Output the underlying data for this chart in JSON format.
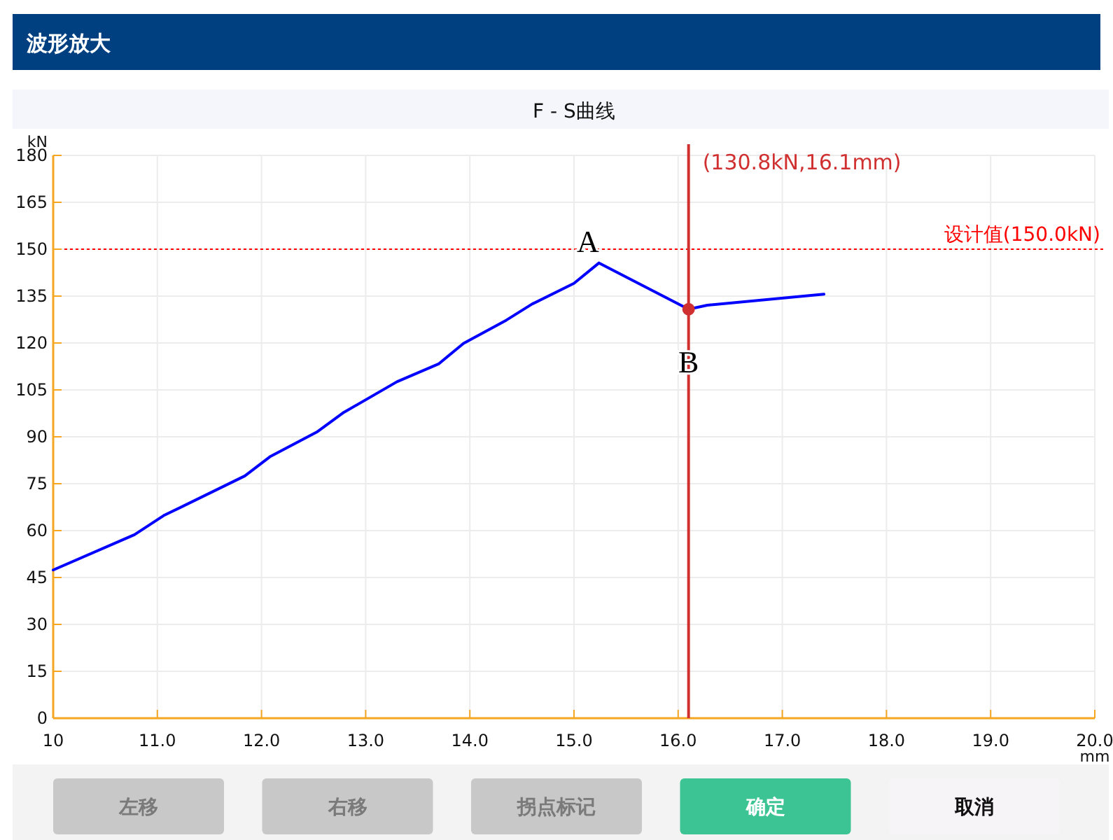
{
  "chart_data": {
    "type": "line",
    "title": "F - S曲线",
    "xlabel": "mm",
    "ylabel": "kN",
    "xlim": [
      10,
      20
    ],
    "xticks": [
      10,
      {
        "value": 11,
        "label": "11.0"
      },
      {
        "value": 12,
        "label": "12.0"
      },
      {
        "value": 13,
        "label": "13.0"
      },
      {
        "value": 14,
        "label": "14.0"
      },
      {
        "value": 15,
        "label": "15.0"
      },
      {
        "value": 16,
        "label": "16.0"
      },
      {
        "value": 17,
        "label": "17.0"
      },
      {
        "value": 18,
        "label": "18.0"
      },
      {
        "value": 19,
        "label": "19.0"
      },
      {
        "value": 20,
        "label": "20.0"
      }
    ],
    "ylim": [
      0,
      180
    ],
    "yticks": [
      0,
      15,
      30,
      45,
      60,
      75,
      90,
      105,
      120,
      135,
      150,
      165,
      180
    ],
    "grid": true,
    "marker": "none",
    "line_style": "solid",
    "series": [
      {
        "color": "#0000ff",
        "x": [
          10,
          10.78,
          11.06,
          11.84,
          12.08,
          12.53,
          12.78,
          13.3,
          13.7,
          13.94,
          14.35,
          14.6,
          15.0,
          15.24,
          16.1,
          16.28,
          17.4
        ],
        "values": [
          47.4,
          58.7,
          64.8,
          77.5,
          83.6,
          91.5,
          97.6,
          107.6,
          113.3,
          119.9,
          127.3,
          132.5,
          139.1,
          145.6,
          130.8,
          132.1,
          135.6
        ]
      },
      {
        "type": "scatter",
        "color": "#d03030",
        "x": [
          16.1
        ],
        "values": [
          130.8
        ],
        "marker": "circle"
      }
    ],
    "ref_lines": [
      {
        "axis": "y",
        "value": 150,
        "label": "设计值(150.0kN)",
        "color": "#ff0000",
        "line_style": "dotted"
      },
      {
        "axis": "x",
        "value": 16.1,
        "label": "(130.8kN,16.1mm)",
        "color": "#d03030",
        "line_style": "solid"
      }
    ],
    "annotations": [
      {
        "text": "A",
        "x": 15.24,
        "y": 145.6
      },
      {
        "text": "B",
        "x": 16.1,
        "y": 130.8
      },
      "波形放大",
      "左移",
      "右移",
      "拐点标记",
      "确定",
      "取消"
    ]
  }
}
